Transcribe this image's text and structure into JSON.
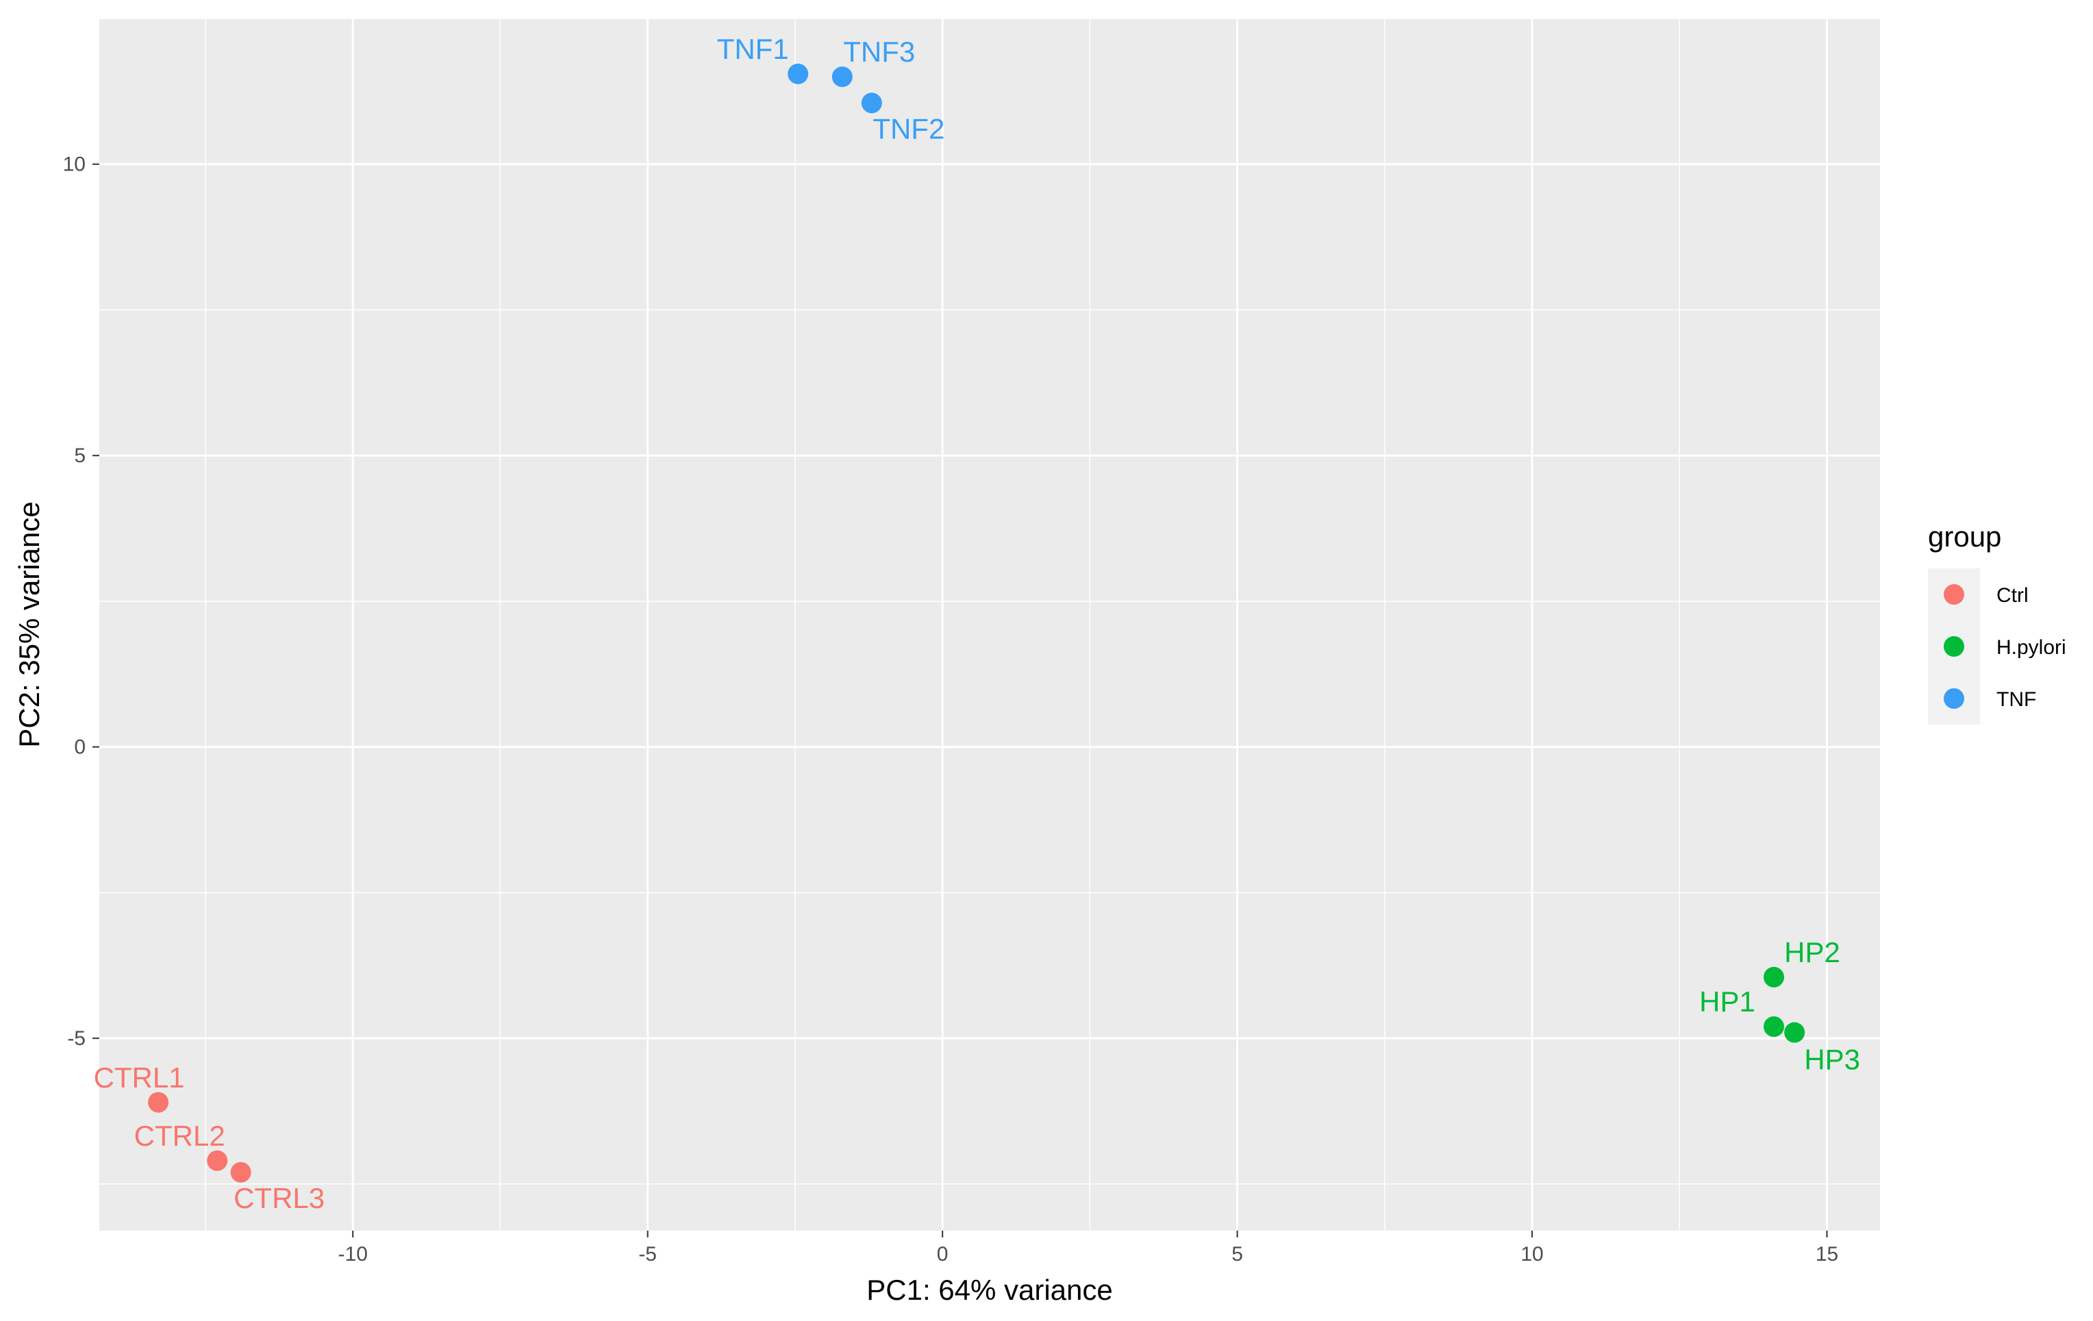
{
  "chart_data": {
    "type": "scatter",
    "xlabel": "PC1: 64% variance",
    "ylabel": "PC2: 35% variance",
    "xlim": [
      -14.3,
      15.9
    ],
    "ylim": [
      -8.3,
      12.5
    ],
    "x_ticks": [
      -10,
      -5,
      0,
      5,
      10,
      15
    ],
    "y_ticks": [
      -5,
      0,
      5,
      10
    ],
    "x_tick_labels": [
      "-10",
      "-5",
      "0",
      "5",
      "10",
      "15"
    ],
    "y_tick_labels": [
      "-5",
      "0",
      "5",
      "10"
    ],
    "grid": true,
    "legend": {
      "title": "group",
      "position": "right",
      "entries": [
        {
          "label": "Ctrl",
          "color": "#F8766D"
        },
        {
          "label": "H.pylori",
          "color": "#00BA38"
        },
        {
          "label": "TNF",
          "color": "#3A9EF6"
        }
      ]
    },
    "series": [
      {
        "name": "Ctrl",
        "color": "#F8766D",
        "points": [
          {
            "label": "CTRL1",
            "x": -13.3,
            "y": -6.1
          },
          {
            "label": "CTRL2",
            "x": -12.3,
            "y": -7.1
          },
          {
            "label": "CTRL3",
            "x": -11.9,
            "y": -7.3
          }
        ]
      },
      {
        "name": "H.pylori",
        "color": "#00BA38",
        "points": [
          {
            "label": "HP1",
            "x": 14.1,
            "y": -4.8
          },
          {
            "label": "HP2",
            "x": 14.1,
            "y": -3.95
          },
          {
            "label": "HP3",
            "x": 14.45,
            "y": -4.9
          }
        ]
      },
      {
        "name": "TNF",
        "color": "#3A9EF6",
        "points": [
          {
            "label": "TNF1",
            "x": -2.45,
            "y": 11.55
          },
          {
            "label": "TNF2",
            "x": -1.2,
            "y": 11.05
          },
          {
            "label": "TNF3",
            "x": -1.7,
            "y": 11.5
          }
        ]
      }
    ]
  }
}
